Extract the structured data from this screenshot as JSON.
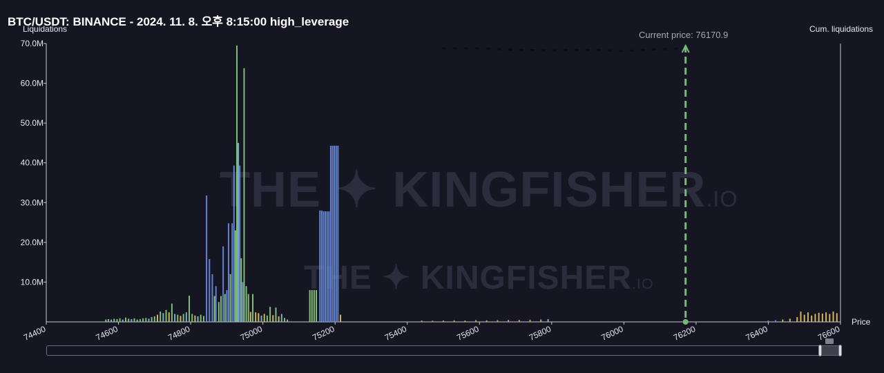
{
  "header": {
    "title": "BTC/USDT: BINANCE - 2024. 11. 8. 오후 8:15:00 high_leverage",
    "current_price_label": "Current price: 76170.9"
  },
  "watermark": {
    "text": "THE KINGFISHER",
    "suffix": ".IO"
  },
  "chart_data": {
    "type": "bar",
    "ylabel": "Liquidations",
    "y2label": "Cum. liquidations",
    "xlabel": "Price",
    "xlim": [
      74400,
      76600
    ],
    "ylim": [
      0,
      70000000
    ],
    "x_ticks": [
      "74400",
      "74600",
      "74800",
      "75000",
      "75200",
      "75400",
      "75600",
      "75800",
      "76000",
      "76200",
      "76400",
      "76600"
    ],
    "y_ticks": [
      "70.0M",
      "60.0M",
      "50.0M",
      "40.0M",
      "30.0M",
      "20.0M",
      "10.0M"
    ],
    "current_price": 76170.9,
    "colors": {
      "green": "#8ccf7e",
      "blue": "#6b8fe0",
      "cyan": "#7ec3d8",
      "yellow": "#e6c566",
      "orange": "#e0a060",
      "current_line": "#76b87a"
    },
    "series": [
      {
        "values": [
          [
            74565,
            0.6,
            "green"
          ],
          [
            74572,
            0.7,
            "green"
          ],
          [
            74580,
            0.6,
            "cyan"
          ],
          [
            74588,
            0.8,
            "green"
          ],
          [
            74596,
            0.7,
            "green"
          ],
          [
            74604,
            0.9,
            "green"
          ],
          [
            74612,
            0.6,
            "cyan"
          ],
          [
            74620,
            1.1,
            "green"
          ],
          [
            74628,
            0.8,
            "green"
          ],
          [
            74636,
            0.7,
            "cyan"
          ],
          [
            74644,
            0.9,
            "green"
          ],
          [
            74652,
            0.6,
            "green"
          ],
          [
            74660,
            0.7,
            "cyan"
          ],
          [
            74668,
            0.9,
            "green"
          ],
          [
            74676,
            1.0,
            "green"
          ],
          [
            74684,
            0.8,
            "cyan"
          ],
          [
            74692,
            1.2,
            "green"
          ],
          [
            74700,
            1.4,
            "green"
          ],
          [
            74708,
            1.8,
            "yellow"
          ],
          [
            74716,
            2.6,
            "green"
          ],
          [
            74724,
            2.2,
            "cyan"
          ],
          [
            74732,
            3.0,
            "green"
          ],
          [
            74740,
            2.4,
            "yellow"
          ],
          [
            74748,
            4.6,
            "green"
          ],
          [
            74756,
            2.0,
            "cyan"
          ],
          [
            74764,
            1.8,
            "green"
          ],
          [
            74772,
            1.5,
            "yellow"
          ],
          [
            74780,
            2.0,
            "green"
          ],
          [
            74788,
            2.4,
            "cyan"
          ],
          [
            74796,
            6.6,
            "green"
          ],
          [
            74804,
            2.0,
            "green"
          ],
          [
            74812,
            1.6,
            "yellow"
          ],
          [
            74820,
            1.4,
            "cyan"
          ],
          [
            74828,
            1.8,
            "green"
          ],
          [
            74836,
            1.5,
            "green"
          ],
          [
            74844,
            31.8,
            "blue"
          ],
          [
            74852,
            15.8,
            "blue"
          ],
          [
            74860,
            12.0,
            "blue"
          ],
          [
            74866,
            6.5,
            "green"
          ],
          [
            74870,
            9.0,
            "blue"
          ],
          [
            74878,
            5.0,
            "green"
          ],
          [
            74884,
            6.5,
            "green"
          ],
          [
            74890,
            19.0,
            "blue"
          ],
          [
            74895,
            7.0,
            "green"
          ],
          [
            74900,
            8.0,
            "blue"
          ],
          [
            74905,
            24.8,
            "blue"
          ],
          [
            74910,
            12.0,
            "green"
          ],
          [
            74915,
            24.8,
            "blue"
          ],
          [
            74920,
            39.3,
            "blue"
          ],
          [
            74924,
            23.0,
            "green"
          ],
          [
            74928,
            69.5,
            "green"
          ],
          [
            74932,
            45.0,
            "cyan"
          ],
          [
            74936,
            39.3,
            "blue"
          ],
          [
            74940,
            16.0,
            "green"
          ],
          [
            74944,
            10.0,
            "blue"
          ],
          [
            74948,
            63.8,
            "green"
          ],
          [
            74954,
            9.0,
            "green"
          ],
          [
            74960,
            7.0,
            "green"
          ],
          [
            74966,
            2.5,
            "yellow"
          ],
          [
            74972,
            7.0,
            "green"
          ],
          [
            74980,
            2.4,
            "yellow"
          ],
          [
            74988,
            2.2,
            "yellow"
          ],
          [
            74996,
            1.6,
            "cyan"
          ],
          [
            75004,
            2.0,
            "yellow"
          ],
          [
            75012,
            1.6,
            "green"
          ],
          [
            75020,
            3.8,
            "green"
          ],
          [
            75028,
            1.7,
            "yellow"
          ],
          [
            75036,
            3.6,
            "green"
          ],
          [
            75044,
            1.4,
            "yellow"
          ],
          [
            75052,
            2.0,
            "cyan"
          ],
          [
            75060,
            1.0,
            "green"
          ],
          [
            75068,
            0.6,
            "green"
          ],
          [
            75130,
            8.0,
            "green"
          ],
          [
            75136,
            8.0,
            "green"
          ],
          [
            75142,
            8.0,
            "green"
          ],
          [
            75148,
            8.0,
            "green"
          ],
          [
            75158,
            28.0,
            "blue"
          ],
          [
            75163,
            28.0,
            "blue"
          ],
          [
            75168,
            27.8,
            "blue"
          ],
          [
            75173,
            27.8,
            "blue"
          ],
          [
            75178,
            27.8,
            "blue"
          ],
          [
            75183,
            27.8,
            "blue"
          ],
          [
            75188,
            44.3,
            "blue"
          ],
          [
            75193,
            44.3,
            "blue"
          ],
          [
            75198,
            44.3,
            "blue"
          ],
          [
            75203,
            44.3,
            "blue"
          ],
          [
            75208,
            44.3,
            "blue"
          ],
          [
            75215,
            1.8,
            "yellow"
          ],
          [
            75440,
            0.35,
            "orange"
          ],
          [
            75470,
            0.3,
            "orange"
          ],
          [
            75500,
            0.35,
            "orange"
          ],
          [
            75530,
            0.4,
            "orange"
          ],
          [
            75560,
            0.35,
            "orange"
          ],
          [
            75590,
            0.45,
            "orange"
          ],
          [
            75620,
            0.4,
            "orange"
          ],
          [
            75650,
            0.45,
            "orange"
          ],
          [
            75680,
            0.5,
            "orange"
          ],
          [
            75710,
            0.5,
            "orange"
          ],
          [
            75740,
            0.55,
            "orange"
          ],
          [
            75770,
            0.6,
            "orange"
          ],
          [
            75790,
            0.7,
            "cyan"
          ],
          [
            76400,
            0.35,
            "blue"
          ],
          [
            76420,
            0.45,
            "blue"
          ],
          [
            76440,
            0.6,
            "yellow"
          ],
          [
            76460,
            0.8,
            "yellow"
          ],
          [
            76480,
            1.2,
            "yellow"
          ],
          [
            76490,
            2.6,
            "yellow"
          ],
          [
            76500,
            1.8,
            "yellow"
          ],
          [
            76510,
            2.4,
            "yellow"
          ],
          [
            76520,
            1.6,
            "yellow"
          ],
          [
            76530,
            2.0,
            "yellow"
          ],
          [
            76540,
            2.3,
            "yellow"
          ],
          [
            76550,
            2.1,
            "yellow"
          ],
          [
            76560,
            2.4,
            "yellow"
          ],
          [
            76570,
            2.0,
            "yellow"
          ],
          [
            76580,
            2.6,
            "yellow"
          ],
          [
            76590,
            2.2,
            "yellow"
          ]
        ]
      }
    ]
  }
}
